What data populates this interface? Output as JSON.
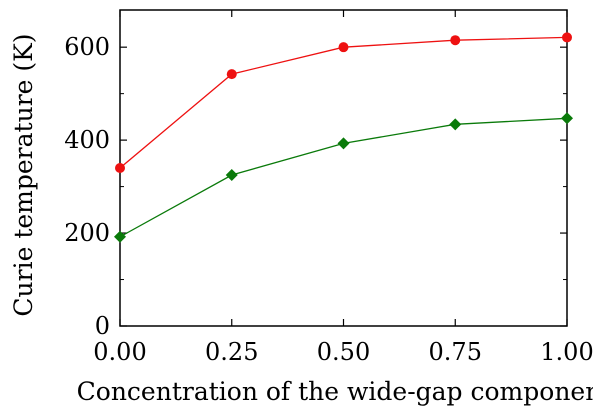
{
  "chart_data": {
    "type": "line",
    "xlabel": "Concentration of the wide-gap component",
    "ylabel": "Curie temperature (K)",
    "xlim": [
      0.0,
      1.0
    ],
    "ylim": [
      0,
      680
    ],
    "x_ticks": [
      0.0,
      0.25,
      0.5,
      0.75,
      1.0
    ],
    "x_tick_labels": [
      "0.00",
      "0.25",
      "0.50",
      "0.75",
      "1.00"
    ],
    "y_ticks": [
      0,
      200,
      400,
      600
    ],
    "y_tick_labels": [
      "0",
      "200",
      "400",
      "600"
    ],
    "y_minor_ticks": [
      100,
      300,
      500
    ],
    "grid": false,
    "legend": "none",
    "series": [
      {
        "color": "#ee1111",
        "marker": "circle",
        "x": [
          0.0,
          0.25,
          0.5,
          0.75,
          1.0
        ],
        "y": [
          340,
          542,
          600,
          615,
          621
        ]
      },
      {
        "color": "#0a7a0a",
        "marker": "diamond",
        "x": [
          0.0,
          0.25,
          0.5,
          0.75,
          1.0
        ],
        "y": [
          192,
          325,
          393,
          434,
          447
        ]
      }
    ]
  }
}
